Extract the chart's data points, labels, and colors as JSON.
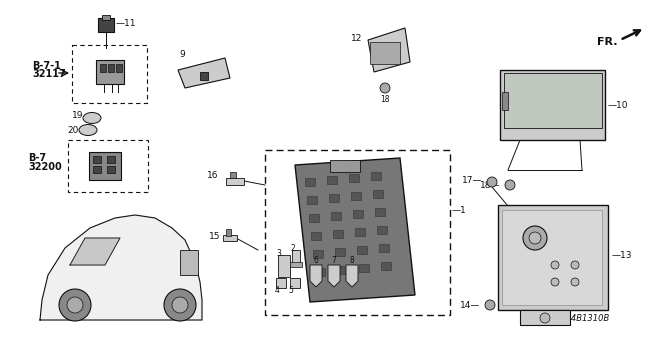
{
  "bg_color": "#ffffff",
  "diagram_code": "TS84B1310B",
  "fr_label": "FR.",
  "line_color": "#111111",
  "gray_fill": "#cccccc",
  "dark_fill": "#444444",
  "light_fill": "#e8e8e8",
  "font_size": 6.5,
  "bold_font_size": 7.5
}
